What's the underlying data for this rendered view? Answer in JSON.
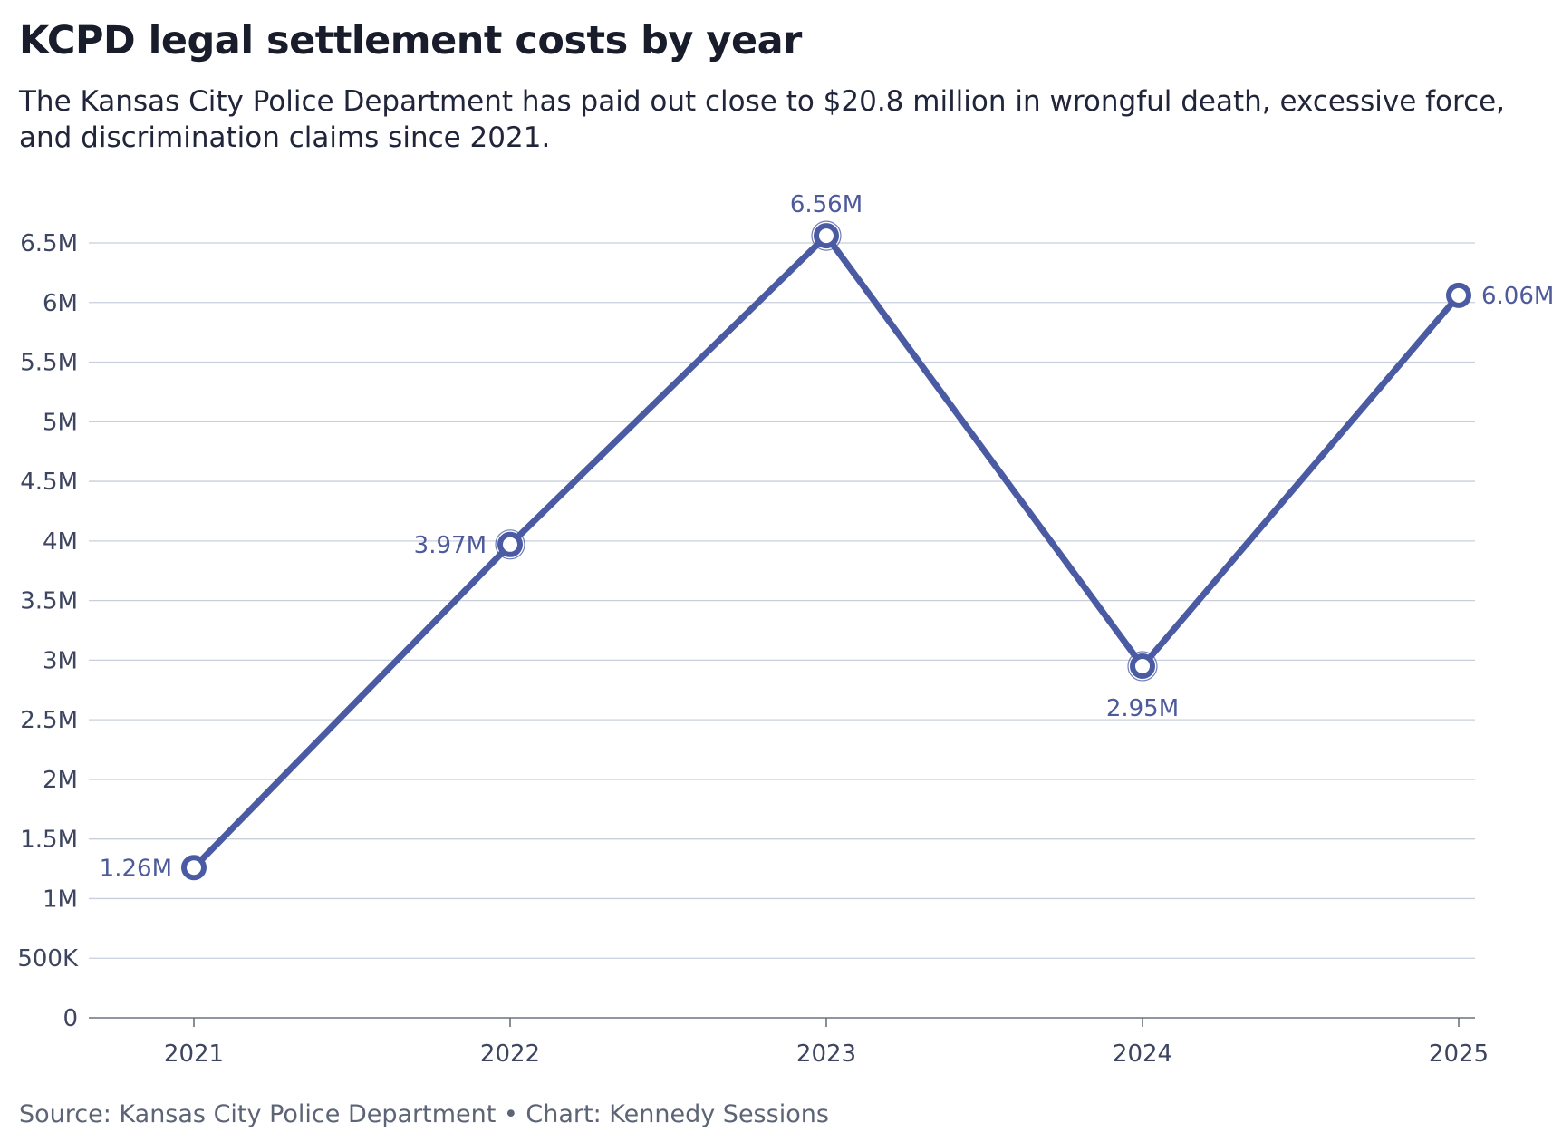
{
  "header": {
    "title": "KCPD legal settlement costs by year",
    "subtitle": "The Kansas City Police Department has paid out close to $20.8 million in wrongful death, excessive force, and discrimination claims since 2021."
  },
  "footer": {
    "source": "Source: Kansas City Police Department • Chart: Kennedy Sessions"
  },
  "chart_data": {
    "type": "line",
    "x": [
      "2021",
      "2022",
      "2023",
      "2024",
      "2025"
    ],
    "series": [
      {
        "values": [
          1.26,
          3.97,
          6.56,
          2.95,
          6.06
        ],
        "labels": [
          "1.26M",
          "3.97M",
          "6.56M",
          "2.95M",
          "6.06M"
        ],
        "color": "#4b5ba3"
      }
    ],
    "y_ticks": [
      {
        "value": 0,
        "label": "0"
      },
      {
        "value": 0.5,
        "label": "500K"
      },
      {
        "value": 1,
        "label": "1M"
      },
      {
        "value": 1.5,
        "label": "1.5M"
      },
      {
        "value": 2,
        "label": "2M"
      },
      {
        "value": 2.5,
        "label": "2.5M"
      },
      {
        "value": 3,
        "label": "3M"
      },
      {
        "value": 3.5,
        "label": "3.5M"
      },
      {
        "value": 4,
        "label": "4M"
      },
      {
        "value": 4.5,
        "label": "4.5M"
      },
      {
        "value": 5,
        "label": "5M"
      },
      {
        "value": 5.5,
        "label": "5.5M"
      },
      {
        "value": 6,
        "label": "6M"
      },
      {
        "value": 6.5,
        "label": "6.5M"
      }
    ],
    "ylim": [
      0,
      6.5
    ],
    "grid": true,
    "colors": {
      "line": "#4b5ba3",
      "grid": "#c8cfdc",
      "axis": "#6b7280",
      "label": "#4d5a9c"
    }
  }
}
